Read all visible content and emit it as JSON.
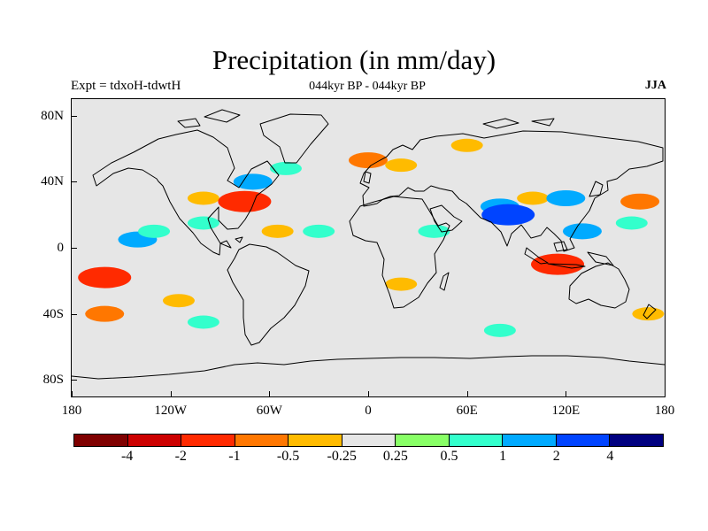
{
  "title": "Precipitation (in mm/day)",
  "subtitle_left": "Expt = tdxoH-tdwtH",
  "subtitle_center": "044kyr BP - 044kyr BP",
  "subtitle_right": "JJA",
  "lat_ticks": [
    "80N",
    "40N",
    "0",
    "40S",
    "80S"
  ],
  "lat_values": [
    80,
    40,
    0,
    -40,
    -80
  ],
  "lon_ticks": [
    "180",
    "120W",
    "60W",
    "0",
    "60E",
    "120E",
    "180"
  ],
  "lon_values": [
    -180,
    -120,
    -60,
    0,
    60,
    120,
    180
  ],
  "colorbar": {
    "colors": [
      "#7f0000",
      "#cc0000",
      "#ff2a00",
      "#ff7700",
      "#ffbb00",
      "#e6e6e6",
      "#88ff66",
      "#33ffcc",
      "#00aaff",
      "#0044ff",
      "#000080"
    ],
    "labels": [
      "-4",
      "-2",
      "-1",
      "-0.5",
      "-0.25",
      "0.25",
      "0.5",
      "1",
      "2",
      "4"
    ]
  },
  "chart_data": {
    "type": "heatmap",
    "projection": "cylindrical-equidistant",
    "lon_range": [
      -180,
      180
    ],
    "lat_range": [
      -90,
      90
    ],
    "levels": [
      -4,
      -2,
      -1,
      -0.5,
      -0.25,
      0.25,
      0.5,
      1,
      2,
      4
    ],
    "features": [
      {
        "lon": -160,
        "lat": -18,
        "value": -2
      },
      {
        "lon": -140,
        "lat": 5,
        "value": 1
      },
      {
        "lon": -130,
        "lat": 10,
        "value": 0.5
      },
      {
        "lon": -100,
        "lat": 30,
        "value": -0.5
      },
      {
        "lon": -75,
        "lat": 28,
        "value": -2
      },
      {
        "lon": -70,
        "lat": 40,
        "value": 1
      },
      {
        "lon": -50,
        "lat": 48,
        "value": 0.5
      },
      {
        "lon": -100,
        "lat": 15,
        "value": 0.5
      },
      {
        "lon": -55,
        "lat": 10,
        "value": -0.5
      },
      {
        "lon": -30,
        "lat": 10,
        "value": 0.5
      },
      {
        "lon": 0,
        "lat": 53,
        "value": -1
      },
      {
        "lon": 20,
        "lat": 50,
        "value": -0.5
      },
      {
        "lon": 60,
        "lat": 62,
        "value": -0.5
      },
      {
        "lon": 40,
        "lat": 10,
        "value": 0.5
      },
      {
        "lon": 20,
        "lat": -22,
        "value": -0.5
      },
      {
        "lon": 80,
        "lat": 25,
        "value": 1
      },
      {
        "lon": 85,
        "lat": 20,
        "value": 2
      },
      {
        "lon": 100,
        "lat": 30,
        "value": -0.5
      },
      {
        "lon": 120,
        "lat": 30,
        "value": 1
      },
      {
        "lon": 115,
        "lat": -10,
        "value": -2
      },
      {
        "lon": 130,
        "lat": 10,
        "value": 1
      },
      {
        "lon": 165,
        "lat": 28,
        "value": -1
      },
      {
        "lon": 160,
        "lat": 15,
        "value": 0.5
      },
      {
        "lon": -160,
        "lat": -40,
        "value": -1
      },
      {
        "lon": -115,
        "lat": -32,
        "value": -0.5
      },
      {
        "lon": -100,
        "lat": -45,
        "value": 0.5
      },
      {
        "lon": 80,
        "lat": -50,
        "value": 0.5
      },
      {
        "lon": 170,
        "lat": -40,
        "value": -0.5
      }
    ]
  }
}
